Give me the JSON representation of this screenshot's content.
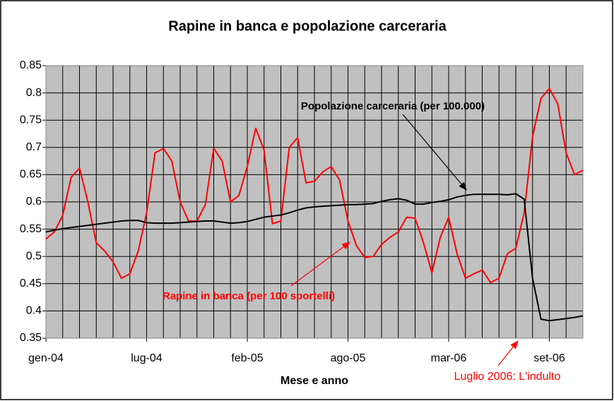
{
  "chart_data": {
    "type": "line",
    "title": "Rapine in banca e popolazione carceraria",
    "x_label": "Mese e anno",
    "categories": [
      "gen-04",
      null,
      null,
      null,
      null,
      null,
      null,
      null,
      null,
      null,
      null,
      null,
      "lug-04",
      null,
      null,
      null,
      null,
      null,
      null,
      null,
      null,
      null,
      null,
      null,
      "feb-05",
      null,
      null,
      null,
      null,
      null,
      null,
      null,
      null,
      null,
      null,
      null,
      "ago-05",
      null,
      null,
      null,
      null,
      null,
      null,
      null,
      null,
      null,
      null,
      null,
      "mar-06",
      null,
      null,
      null,
      null,
      null,
      null,
      null,
      null,
      null,
      null,
      null,
      "set-06",
      null,
      null,
      null,
      null
    ],
    "series": [
      {
        "name": "Rapine in banca (per 100 sportelli)",
        "color": "#ff0000",
        "values": [
          0.532,
          0.545,
          0.575,
          0.645,
          0.662,
          0.6,
          0.525,
          0.51,
          0.49,
          0.46,
          0.468,
          0.51,
          0.58,
          0.69,
          0.698,
          0.675,
          0.6,
          0.565,
          0.565,
          0.595,
          0.698,
          0.675,
          0.6,
          0.612,
          0.665,
          0.735,
          0.695,
          0.56,
          0.565,
          0.7,
          0.718,
          0.635,
          0.638,
          0.655,
          0.665,
          0.64,
          0.565,
          0.52,
          0.498,
          0.5,
          0.522,
          0.535,
          0.545,
          0.572,
          0.57,
          0.525,
          0.47,
          0.535,
          0.572,
          0.505,
          0.46,
          0.468,
          0.475,
          0.452,
          0.46,
          0.505,
          0.515,
          0.58,
          0.72,
          0.79,
          0.808,
          0.78,
          0.69,
          0.65,
          0.658
        ]
      },
      {
        "name": "Popolazione carceraria (per 100.000)",
        "color": "#000000",
        "values": [
          0.545,
          0.548,
          0.551,
          0.553,
          0.555,
          0.557,
          0.559,
          0.561,
          0.563,
          0.565,
          0.566,
          0.566,
          0.562,
          0.561,
          0.561,
          0.561,
          0.562,
          0.563,
          0.564,
          0.565,
          0.565,
          0.563,
          0.561,
          0.562,
          0.564,
          0.568,
          0.572,
          0.574,
          0.576,
          0.58,
          0.585,
          0.589,
          0.591,
          0.592,
          0.593,
          0.594,
          0.595,
          0.595,
          0.596,
          0.597,
          0.601,
          0.604,
          0.606,
          0.603,
          0.596,
          0.596,
          0.599,
          0.601,
          0.604,
          0.609,
          0.612,
          0.614,
          0.614,
          0.614,
          0.614,
          0.613,
          0.615,
          0.605,
          0.46,
          0.385,
          0.382,
          0.384,
          0.386,
          0.388,
          0.391
        ]
      }
    ],
    "annotation": "Luglio 2006: L'indulto",
    "ylim": [
      0.35,
      0.85
    ],
    "yticks": [
      0.35,
      0.4,
      0.45,
      0.5,
      0.55,
      0.6,
      0.65,
      0.7,
      0.75,
      0.8,
      0.85
    ],
    "grid": true,
    "plot_background": "#c0c0c0"
  }
}
